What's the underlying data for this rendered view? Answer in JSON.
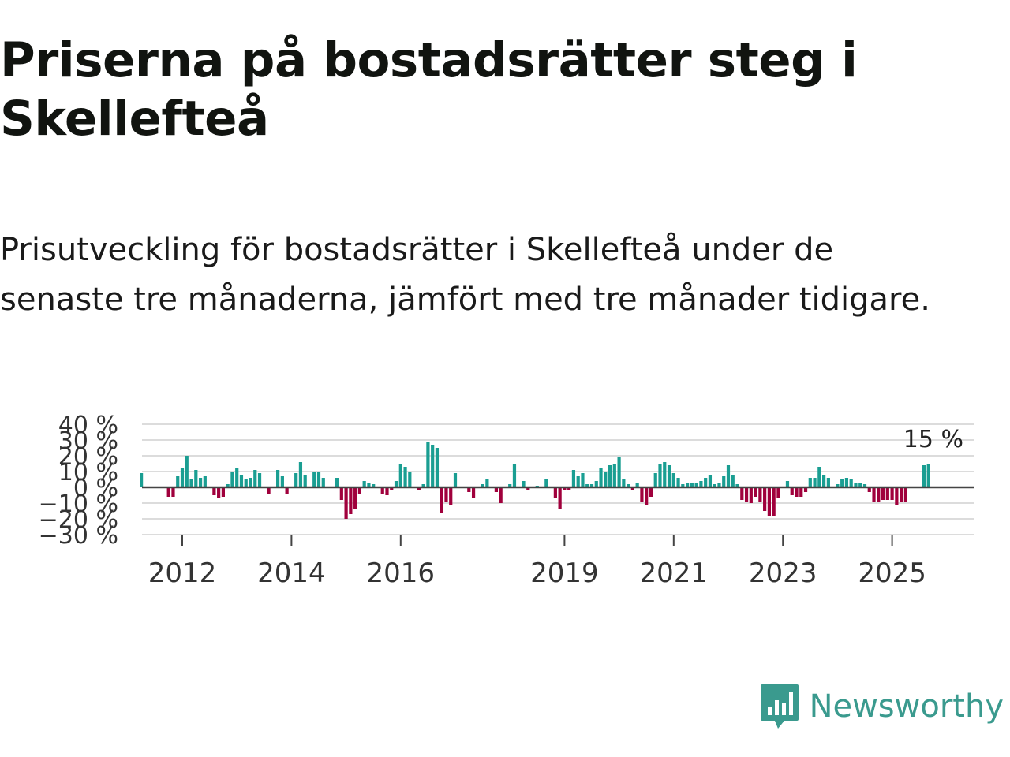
{
  "title": "Priserna på bostadsrätter steg i Skellefteå",
  "subtitle": "Prisutveckling för bostadsrätter i Skellefteå under de senaste tre månaderna, jämfört med tre månader tidigare.",
  "brand": {
    "name": "Newsworthy",
    "icon": "newsworthy-logo-icon",
    "color": "#3a9a8e"
  },
  "colors": {
    "positive": "#1a9e92",
    "negative": "#a0003c",
    "grid": "#dcdcdc",
    "zero": "#444444"
  },
  "chart_data": {
    "type": "bar",
    "title": "Priserna på bostadsrätter steg i Skellefteå",
    "xlabel": "",
    "ylabel": "",
    "ylim": [
      -30,
      40
    ],
    "grid": true,
    "yticks": [
      40,
      30,
      20,
      10,
      0,
      -10,
      -20,
      -30
    ],
    "ytick_labels": [
      "40 %",
      "30 %",
      "20 %",
      "10 %",
      "0 %",
      "−10 %",
      "−20 %",
      "−30 %"
    ],
    "xticks": [
      "2012",
      "2014",
      "2016",
      "2019",
      "2021",
      "2023",
      "2025"
    ],
    "start": {
      "year": 2011,
      "month": 4
    },
    "last_value_label": "15 %",
    "values": [
      9,
      0,
      0,
      0,
      0,
      0,
      -6,
      -6,
      7,
      12,
      20,
      5,
      11,
      6,
      7,
      0,
      -5,
      -7,
      -6,
      2,
      10,
      12,
      8,
      5,
      6,
      11,
      9,
      0,
      -4,
      0,
      11,
      7,
      -4,
      0,
      9,
      16,
      8,
      0,
      10,
      10,
      6,
      0,
      0,
      6,
      -8,
      -20,
      -17,
      -14,
      -4,
      4,
      3,
      2,
      0,
      -4,
      -5,
      -2,
      4,
      15,
      13,
      10,
      0,
      -2,
      2,
      29,
      27,
      25,
      -16,
      -9,
      -11,
      9,
      0,
      0,
      -3,
      -7,
      0,
      2,
      5,
      0,
      -3,
      -10,
      0,
      2,
      15,
      0,
      4,
      -2,
      0,
      1,
      0,
      5,
      0,
      -7,
      -14,
      -2,
      -2,
      11,
      7,
      9,
      2,
      2,
      4,
      12,
      10,
      14,
      15,
      19,
      5,
      2,
      -2,
      3,
      -9,
      -11,
      -6,
      9,
      15,
      16,
      14,
      9,
      6,
      2,
      3,
      3,
      3,
      4,
      6,
      8,
      2,
      3,
      7,
      14,
      8,
      2,
      -8,
      -9,
      -10,
      -6,
      -9,
      -15,
      -18,
      -18,
      -7,
      0,
      4,
      -5,
      -6,
      -6,
      -3,
      6,
      6,
      13,
      8,
      6,
      0,
      2,
      5,
      6,
      5,
      3,
      3,
      2,
      -3,
      -9,
      -9,
      -8,
      -8,
      -8,
      -11,
      -9,
      -9,
      0,
      0,
      0,
      14,
      15
    ]
  }
}
